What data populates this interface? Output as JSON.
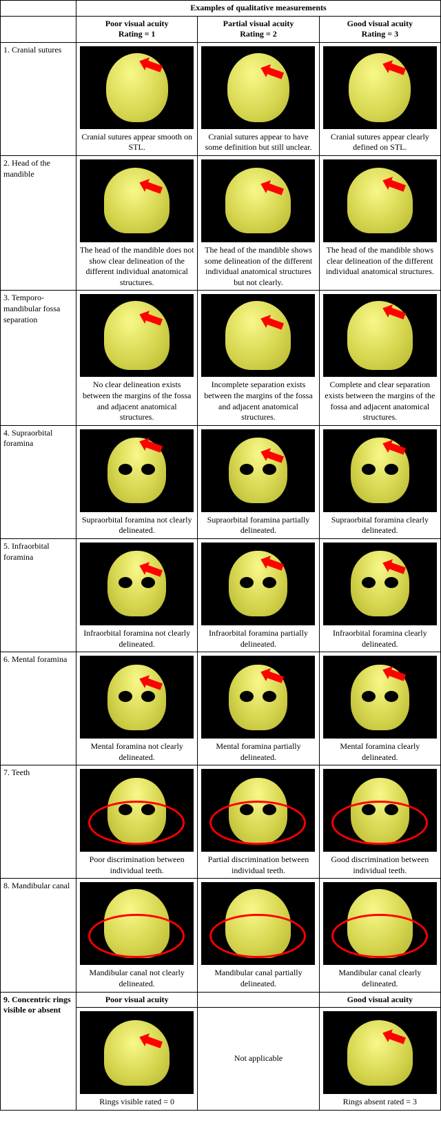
{
  "table": {
    "title": "Examples of qualitative measurements",
    "columns": [
      {
        "header1": "Poor visual acuity",
        "header2": "Rating = 1"
      },
      {
        "header1": "Partial visual acuity",
        "header2": "Rating = 2"
      },
      {
        "header1": "Good visual acuity",
        "header2": "Rating = 3"
      }
    ],
    "rows": [
      {
        "num": "1.",
        "label": "Cranial sutures",
        "captions": [
          "Cranial sutures appear smooth on STL.",
          "Cranial sutures appear to have some definition  but still unclear.",
          "Cranial sutures appear clearly defined on STL."
        ],
        "annotation": "arrow",
        "view": "posterior"
      },
      {
        "num": "2.",
        "label": "Head of the mandible",
        "captions": [
          "The head of the mandible does not show clear delineation of the different individual anatomical structures.",
          "The head of the mandible shows some delineation of the different individual anatomical structures but not clearly.",
          "The head of the mandible shows clear delineation of the different individual anatomical structures."
        ],
        "annotation": "arrow",
        "view": "lateral"
      },
      {
        "num": "3.",
        "label": "Temporo-mandibular fossa separation",
        "captions": [
          "No clear delineation exists between the margins of the fossa and adjacent anatomical structures.",
          "Incomplete separation exists between the margins of the fossa and adjacent anatomical structures.",
          "Complete and clear separation exists between the margins of the fossa and adjacent anatomical structures."
        ],
        "annotation": "arrow",
        "view": "oblique"
      },
      {
        "num": "4.",
        "label": "Supraorbital foramina",
        "captions": [
          "Supraorbital foramina not clearly delineated.",
          "Supraorbital foramina partially delineated.",
          "Supraorbital foramina clearly delineated."
        ],
        "annotation": "arrow",
        "view": "frontal"
      },
      {
        "num": "5.",
        "label": "Infraorbital foramina",
        "captions": [
          "Infraorbital foramina not clearly delineated.",
          "Infraorbital foramina partially delineated.",
          "Infraorbital foramina clearly delineated."
        ],
        "annotation": "arrow",
        "view": "frontal"
      },
      {
        "num": "6.",
        "label": "Mental foramina",
        "captions": [
          "Mental foramina not clearly delineated.",
          "Mental foramina partially delineated.",
          "Mental foramina clearly delineated."
        ],
        "annotation": "arrow",
        "view": "frontal"
      },
      {
        "num": "7.",
        "label": "Teeth",
        "captions": [
          "Poor discrimination between individual teeth.",
          "Partial discrimination between individual teeth.",
          "Good discrimination between individual teeth."
        ],
        "annotation": "ellipse",
        "view": "frontal"
      },
      {
        "num": "8.",
        "label": "Mandibular canal",
        "captions": [
          "Mandibular canal not clearly delineated.",
          "Mandibular canal partially delineated.",
          "Mandibular canal clearly delineated."
        ],
        "annotation": "ellipse",
        "view": "oblique"
      },
      {
        "num": "9.",
        "label": "Concentric rings visible or absent",
        "alt_headers": [
          "Poor visual acuity",
          "",
          "Good visual acuity"
        ],
        "captions": [
          "Rings visible rated = 0",
          "Not applicable",
          "Rings absent rated = 3"
        ],
        "annotation": "arrow",
        "view": "lateral",
        "middle_na": true
      }
    ],
    "colors": {
      "background": "#ffffff",
      "cell_border": "#000000",
      "image_bg": "#000000",
      "skull_tint": "#e6e65a",
      "annotation": "#ff0000",
      "text": "#000000"
    },
    "fonts": {
      "family": "Times New Roman",
      "body_size_pt": 9,
      "header_weight": "bold"
    }
  }
}
